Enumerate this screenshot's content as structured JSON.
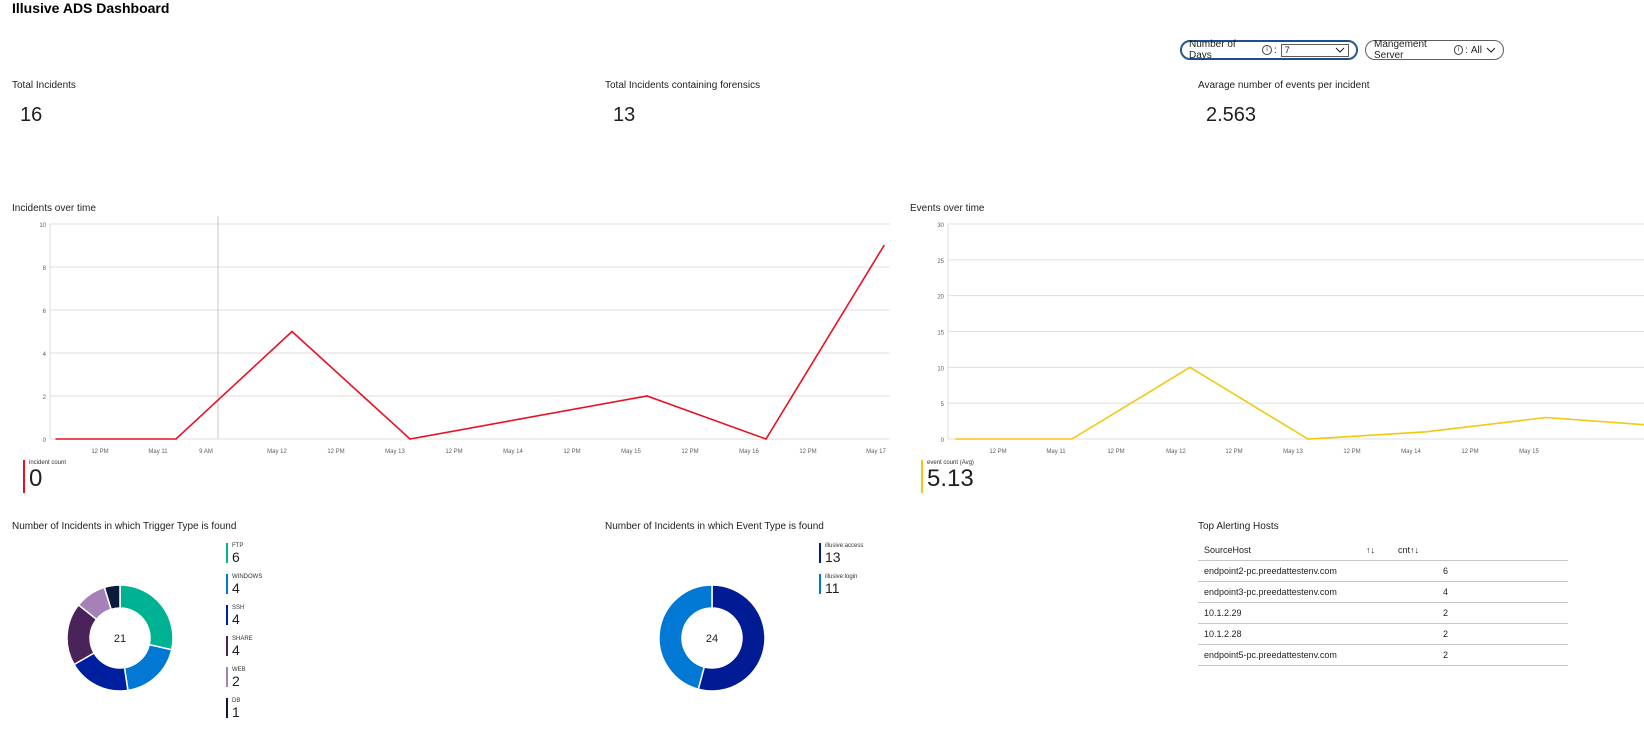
{
  "dashboard": {
    "title": "Illusive ADS Dashboard"
  },
  "params": {
    "days": {
      "label": "Number of Days",
      "separator": ":",
      "value": "7"
    },
    "server": {
      "label": "Mangement Server",
      "separator": ":",
      "value": "All"
    }
  },
  "tiles": [
    {
      "label": "Total Incidents",
      "value": "16"
    },
    {
      "label": "Total Incidents containing forensics",
      "value": "13"
    },
    {
      "label": "Avarage number of events per incident",
      "value": "2.563"
    }
  ],
  "incidents_chart": {
    "title": "Incidents over time",
    "legend_name": "incident count",
    "legend_value": "0",
    "color": "#e81123"
  },
  "events_chart": {
    "title": "Events over time",
    "legend_name": "event count (Avg)",
    "legend_value": "5.13",
    "color": "#f2c811"
  },
  "trigger_chart": {
    "title": "Number of Incidents in which Trigger Type is found",
    "total": "21"
  },
  "event_type_chart": {
    "title": "Number of Incidents in which Event Type is found",
    "total": "24"
  },
  "top_hosts": {
    "title": "Top Alerting Hosts",
    "columns": [
      "SourceHost",
      "cnt"
    ],
    "sort_icon": "↑↓",
    "rows": [
      [
        "endpoint2-pc.preedattestenv.com",
        "6"
      ],
      [
        "endpoint3-pc.preedattestenv.com",
        "4"
      ],
      [
        "10.1.2.29",
        "2"
      ],
      [
        "10.1.2.28",
        "2"
      ],
      [
        "endpoint5-pc.preedattestenv.com",
        "2"
      ]
    ]
  },
  "chart_data": [
    {
      "type": "line",
      "title": "Incidents over time",
      "series": [
        {
          "name": "incident count",
          "color": "#e81123",
          "points": [
            [
              "May 10 9 PM",
              0
            ],
            [
              "May 11 4 AM",
              0
            ],
            [
              "May 12",
              5
            ],
            [
              "May 13",
              0
            ],
            [
              "May 15",
              2
            ],
            [
              "May 16",
              0
            ],
            [
              "May 17",
              9
            ]
          ]
        }
      ],
      "x_ticks": [
        "12 PM",
        "May 11",
        "9 AM",
        "May 12",
        "12 PM",
        "May 13",
        "12 PM",
        "May 14",
        "12 PM",
        "May 15",
        "12 PM",
        "May 16",
        "12 PM",
        "May 17"
      ],
      "y_ticks": [
        "0",
        "2",
        "4",
        "6",
        "8",
        "10"
      ],
      "ylim": [
        0,
        10
      ]
    },
    {
      "type": "line",
      "title": "Events over time",
      "series": [
        {
          "name": "event count (Avg)",
          "color": "#f2c811",
          "points": [
            [
              "May 10 9 PM",
              0
            ],
            [
              "May 11 12 AM",
              0
            ],
            [
              "May 12",
              10
            ],
            [
              "May 13",
              0
            ],
            [
              "May 14",
              1
            ],
            [
              "May 15",
              3
            ]
          ]
        }
      ],
      "x_ticks": [
        "12 PM",
        "May 11",
        "12 PM",
        "May 12",
        "12 PM",
        "May 13",
        "12 PM",
        "May 14",
        "12 PM",
        "May 15"
      ],
      "y_ticks": [
        "0",
        "5",
        "10",
        "15",
        "20",
        "25",
        "30"
      ],
      "ylim": [
        0,
        30
      ]
    },
    {
      "type": "pie",
      "title": "Number of Incidents in which Trigger Type is found",
      "categories": [
        "FTP",
        "WINDOWS",
        "SSH",
        "SHARE",
        "WEB",
        "DB"
      ],
      "values": [
        6,
        4,
        4,
        4,
        2,
        1
      ],
      "colors": [
        "#00b294",
        "#0078d4",
        "#001f9f",
        "#4a235a",
        "#a681b8",
        "#0b1a3a"
      ]
    },
    {
      "type": "pie",
      "title": "Number of Incidents in which Event Type is found",
      "categories": [
        "illusive:access",
        "illusive:login"
      ],
      "values": [
        13,
        11
      ],
      "colors": [
        "#001b94",
        "#0078d4"
      ]
    }
  ]
}
